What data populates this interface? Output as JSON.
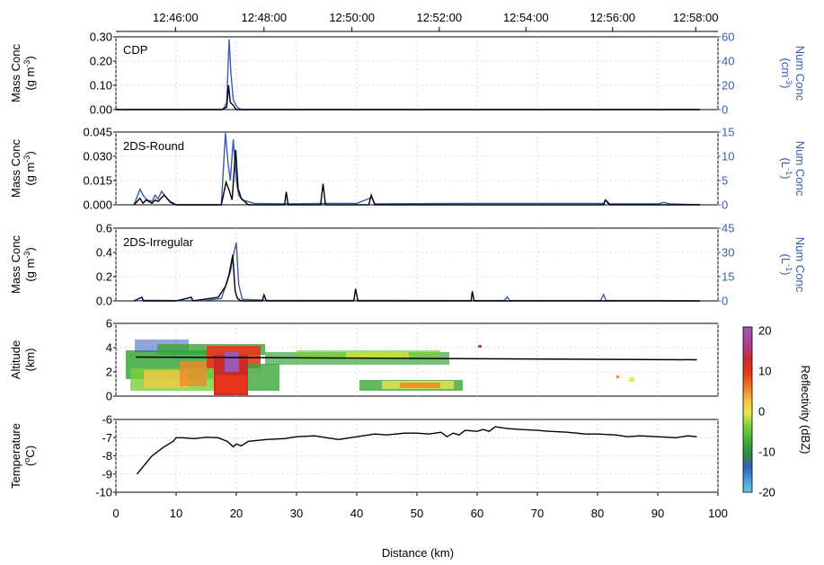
{
  "top_axis": {
    "ticks": [
      "12:46:00",
      "12:48:00",
      "12:50:00",
      "12:52:00",
      "12:54:00",
      "12:56:00",
      "12:58:00"
    ],
    "tick_distance_km": [
      9.9,
      24.6,
      39.2,
      53.7,
      68.1,
      82.5,
      96.3
    ]
  },
  "x_axis": {
    "label": "Distance (km)",
    "ticks": [
      "0",
      "10",
      "20",
      "30",
      "40",
      "50",
      "60",
      "70",
      "80",
      "90",
      "100"
    ],
    "range": [
      0,
      100
    ]
  },
  "colorbar": {
    "label": "Reflectivity (dBZ)",
    "ticks": [
      "20",
      "10",
      "0",
      "-10",
      "-20"
    ],
    "range": [
      -20,
      20
    ],
    "colors": [
      "#9b59b6",
      "#cc2a2a",
      "#e8361c",
      "#f08a28",
      "#f5c842",
      "#e8e84a",
      "#7ccf3a",
      "#3aa63a",
      "#2a8a4a",
      "#3a5cc0",
      "#4aa0d8",
      "#5fd0d8"
    ]
  },
  "panels": {
    "cdp": {
      "name": "CDP",
      "ylabel_left": [
        "Mass Conc",
        "(g m",
        "-3",
        ")"
      ],
      "ylabel_right": [
        "Num Conc",
        "(cm",
        "-3",
        ")"
      ],
      "left_ticks": [
        "0.30",
        "0.20",
        "0.10",
        "0.00"
      ],
      "right_ticks": [
        "60",
        "40",
        "20",
        "0"
      ]
    },
    "round": {
      "name": "2DS-Round",
      "ylabel_left": [
        "Mass Conc",
        "(g m",
        "-3",
        ")"
      ],
      "ylabel_right": [
        "Num Conc",
        "(L",
        "-1",
        ")"
      ],
      "left_ticks": [
        "0.045",
        "0.030",
        "0.015",
        "0.000"
      ],
      "right_ticks": [
        "15",
        "10",
        "5",
        "0"
      ]
    },
    "irregular": {
      "name": "2DS-Irregular",
      "ylabel_left": [
        "Mass Conc",
        "(g m",
        "-3",
        ")"
      ],
      "ylabel_right": [
        "Num Conc",
        "(L",
        "-1",
        ")"
      ],
      "left_ticks": [
        "0.6",
        "0.4",
        "0.2",
        "0.0"
      ],
      "right_ticks": [
        "45",
        "30",
        "15",
        "0"
      ]
    },
    "altitude": {
      "ylabel": [
        "Altitude",
        "(km)"
      ],
      "ticks": [
        "6",
        "4",
        "2",
        "0"
      ]
    },
    "temperature": {
      "ylabel": [
        "Temperature",
        "(",
        "o",
        "C)"
      ],
      "ticks": [
        "-6",
        "-7",
        "-8",
        "-9",
        "-10"
      ]
    }
  },
  "chart_data": [
    {
      "type": "line",
      "title": "CDP",
      "ylim_left": [
        0,
        0.3
      ],
      "ylim_right": [
        0,
        60
      ],
      "series": [
        {
          "name": "Mass Conc",
          "color": "#000000",
          "x": [
            0,
            3,
            10,
            17.5,
            18.4,
            18.7,
            19.0,
            19.4,
            20,
            25,
            40,
            60,
            80,
            97
          ],
          "y": [
            0,
            0,
            0,
            0,
            0.01,
            0.1,
            0.03,
            0.02,
            0,
            0,
            0,
            0,
            0,
            0
          ]
        },
        {
          "name": "Num Conc",
          "color": "#3a5cb0",
          "x": [
            0,
            3,
            10,
            17.8,
            18.4,
            18.8,
            19.1,
            19.5,
            20.0,
            20.4,
            21,
            30,
            50,
            80,
            97
          ],
          "y": [
            0,
            0,
            0,
            0,
            6,
            58,
            30,
            8,
            3,
            1,
            0,
            0,
            0,
            0,
            0
          ]
        }
      ]
    },
    {
      "type": "line",
      "title": "2DS-Round",
      "ylim_left": [
        0,
        0.045
      ],
      "ylim_right": [
        0,
        15
      ],
      "series": [
        {
          "name": "Mass Conc",
          "color": "#000000",
          "x": [
            3,
            4,
            4.5,
            5,
            6,
            6.5,
            7,
            8,
            9,
            10,
            15,
            17.5,
            18.3,
            18.8,
            19.3,
            19.9,
            20.3,
            20.8,
            22,
            28,
            28.3,
            28.6,
            34,
            34.4,
            34.8,
            38,
            42,
            42.4,
            43,
            60,
            81,
            81.3,
            82,
            92,
            97
          ],
          "y": [
            0,
            0.004,
            0.001,
            0.003,
            0.001,
            0.003,
            0.002,
            0.006,
            0.002,
            0,
            0,
            0,
            0.014,
            0.009,
            0.003,
            0.034,
            0.01,
            0.004,
            0,
            0,
            0.008,
            0,
            0,
            0.013,
            0,
            0,
            0,
            0.006,
            0,
            0,
            0,
            0.003,
            0,
            0,
            0
          ]
        },
        {
          "name": "Num Conc",
          "color": "#3a5cb0",
          "x": [
            3,
            4,
            4.6,
            5.2,
            6,
            6.5,
            7,
            7.6,
            8.2,
            9,
            10,
            15,
            17.5,
            18.2,
            18.6,
            19.0,
            19.5,
            20.0,
            20.4,
            21,
            23,
            28,
            35,
            40,
            42.5,
            43,
            60,
            81,
            81.3,
            82,
            90,
            91,
            92,
            97
          ],
          "y": [
            0,
            3.2,
            1.8,
            1.0,
            0.7,
            2.0,
            1.2,
            2.8,
            1.8,
            0.5,
            0,
            0,
            0,
            14.8,
            9,
            5,
            13.5,
            5,
            2,
            1,
            0.3,
            0.2,
            0.3,
            0.3,
            1.5,
            0.2,
            0.3,
            0.3,
            1.0,
            0.2,
            0.2,
            0.5,
            0.2,
            0
          ]
        }
      ]
    },
    {
      "type": "line",
      "title": "2DS-Irregular",
      "ylim_left": [
        0,
        0.6
      ],
      "ylim_right": [
        0,
        45
      ],
      "series": [
        {
          "name": "Mass Conc",
          "color": "#000000",
          "x": [
            3,
            4.3,
            4.6,
            10,
            12.5,
            12.8,
            17,
            18.2,
            18.8,
            19.4,
            19.8,
            20.2,
            20.8,
            24.3,
            24.6,
            25,
            39.5,
            39.8,
            40.2,
            59,
            59.2,
            59.5,
            97
          ],
          "y": [
            0,
            0.03,
            0,
            0,
            0.03,
            0,
            0.03,
            0.12,
            0.22,
            0.38,
            0.08,
            0.02,
            0,
            0,
            0.05,
            0,
            0,
            0.1,
            0,
            0,
            0.08,
            0,
            0
          ]
        },
        {
          "name": "Num Conc",
          "color": "#3a5cb0",
          "x": [
            3,
            5,
            10,
            15,
            17.5,
            18.5,
            19.0,
            19.5,
            20.0,
            20.4,
            21,
            25,
            30,
            40,
            64.5,
            65,
            65.4,
            80.5,
            81,
            81.4,
            90,
            97
          ],
          "y": [
            0,
            0.4,
            0.2,
            0.4,
            1.5,
            12,
            18,
            28,
            36,
            10,
            1,
            0.4,
            0.3,
            0.3,
            0.2,
            2.5,
            0.2,
            0.2,
            4,
            0.2,
            0.2,
            0
          ]
        }
      ]
    },
    {
      "type": "heatmap",
      "title": "Altitude / Reflectivity",
      "ylim": [
        0,
        6
      ],
      "flight_altitude_km": 3.0,
      "flight_x_range": [
        3.3,
        96.5
      ]
    },
    {
      "type": "line",
      "title": "Temperature",
      "ylim": [
        -10,
        -6
      ],
      "series": [
        {
          "name": "Temperature",
          "color": "#000000",
          "x": [
            3.5,
            4.5,
            6,
            8,
            9.5,
            10,
            11,
            13,
            15,
            17,
            18.5,
            19.5,
            20,
            20.8,
            22,
            25,
            28,
            30,
            33,
            35,
            37,
            40,
            43,
            45,
            48,
            50,
            52,
            54,
            55,
            56,
            57,
            58,
            60,
            61,
            62,
            63,
            65,
            67,
            70,
            72,
            75,
            78,
            80,
            83,
            85,
            87,
            90,
            93,
            95,
            96.5
          ],
          "y": [
            -9.0,
            -8.6,
            -8.0,
            -7.5,
            -7.2,
            -7.0,
            -7.0,
            -7.05,
            -6.98,
            -7.0,
            -7.2,
            -7.5,
            -7.35,
            -7.45,
            -7.2,
            -7.1,
            -7.05,
            -6.95,
            -6.9,
            -7.0,
            -7.1,
            -6.95,
            -6.8,
            -6.85,
            -6.75,
            -6.75,
            -6.8,
            -6.7,
            -6.95,
            -6.75,
            -6.85,
            -6.6,
            -6.65,
            -6.55,
            -6.65,
            -6.4,
            -6.5,
            -6.55,
            -6.6,
            -6.65,
            -6.7,
            -6.8,
            -6.8,
            -6.85,
            -6.95,
            -6.9,
            -6.95,
            -7.0,
            -6.9,
            -6.95
          ]
        }
      ]
    }
  ]
}
